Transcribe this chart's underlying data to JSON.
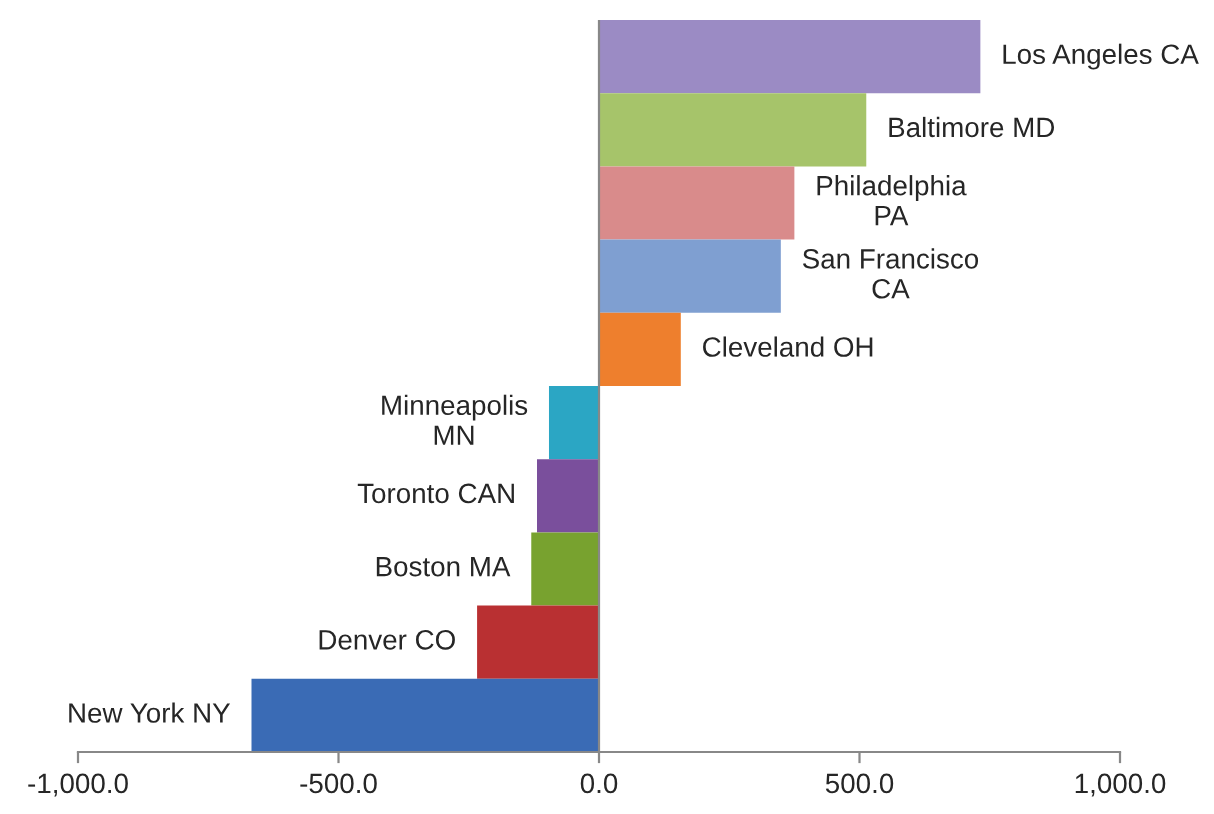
{
  "chart_data": {
    "type": "bar",
    "orientation": "horizontal",
    "categories": [
      "Los Angeles CA",
      "Baltimore MD",
      "Philadelphia\nPA",
      "San Francisco\nCA",
      "Cleveland OH",
      "Minneapolis\nMN",
      "Toronto CAN",
      "Boston MA",
      "Denver CO",
      "New York NY"
    ],
    "values": [
      732,
      513,
      375,
      349,
      157,
      -96,
      -119,
      -130,
      -234,
      -667
    ],
    "colors": [
      "#9b8bc4",
      "#a6c46a",
      "#d98b8b",
      "#7f9fd1",
      "#ee7f2d",
      "#2ba6c4",
      "#7a4f9c",
      "#78a22f",
      "#b93032",
      "#3a6bb5"
    ],
    "xlim": [
      -1000,
      1000
    ],
    "xticks": [
      {
        "value": -1000,
        "label": "-1,000.0"
      },
      {
        "value": -500,
        "label": "-500.0"
      },
      {
        "value": 0,
        "label": "0.0"
      },
      {
        "value": 500,
        "label": "500.0"
      },
      {
        "value": 1000,
        "label": "1,000.0"
      }
    ],
    "grid": false
  }
}
